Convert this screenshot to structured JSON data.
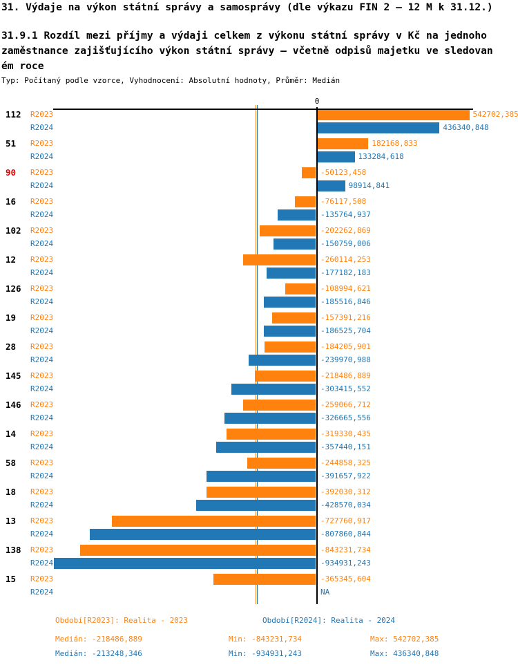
{
  "header": {
    "title": "31. Výdaje na výkon státní správy a samosprávy (dle výkazu FIN 2 – 12 M k 31.12.)",
    "subtitle_lines": [
      "31.9.1 Rozdíl mezi příjmy a výdaji celkem z výkonu státní správy v Kč na jednoho",
      "zaměstnance zajišťujícího výkon státní správy – včetně odpisů majetku ve sledovan",
      "ém roce"
    ],
    "meta": "Typ: Počítaný podle vzorce, Vyhodnocení: Absolutní hodnoty, Průměr: Medián"
  },
  "chart_data": {
    "type": "bar",
    "orientation": "horizontal",
    "zero_label": "0",
    "xlim": [
      -934931.243,
      542702.385
    ],
    "series_labels": {
      "r2023": "R2023",
      "r2024": "R2024"
    },
    "colors": {
      "r2023": "#FF820E",
      "r2024": "#2277B5",
      "highlight_id": "#EE0000",
      "id": "#000000",
      "axis": "#000000"
    },
    "medians": {
      "r2023": -218486.889,
      "r2024": -213248.346
    },
    "groups": [
      {
        "id": "112",
        "highlight": false,
        "r2023": {
          "value": 542702.385,
          "label": "542702,385"
        },
        "r2024": {
          "value": 436340.848,
          "label": "436340,848"
        }
      },
      {
        "id": "51",
        "highlight": false,
        "r2023": {
          "value": 182168.833,
          "label": "182168,833"
        },
        "r2024": {
          "value": 133284.618,
          "label": "133284,618"
        }
      },
      {
        "id": "90",
        "highlight": true,
        "r2023": {
          "value": -50123.458,
          "label": "-50123,458"
        },
        "r2024": {
          "value": 98914.841,
          "label": "98914,841"
        }
      },
      {
        "id": "16",
        "highlight": false,
        "r2023": {
          "value": -76117.508,
          "label": "-76117,508"
        },
        "r2024": {
          "value": -135764.937,
          "label": "-135764,937"
        }
      },
      {
        "id": "102",
        "highlight": false,
        "r2023": {
          "value": -202262.869,
          "label": "-202262,869"
        },
        "r2024": {
          "value": -150759.006,
          "label": "-150759,006"
        }
      },
      {
        "id": "12",
        "highlight": false,
        "r2023": {
          "value": -260114.253,
          "label": "-260114,253"
        },
        "r2024": {
          "value": -177182.183,
          "label": "-177182,183"
        }
      },
      {
        "id": "126",
        "highlight": false,
        "r2023": {
          "value": -108994.621,
          "label": "-108994,621"
        },
        "r2024": {
          "value": -185516.846,
          "label": "-185516,846"
        }
      },
      {
        "id": "19",
        "highlight": false,
        "r2023": {
          "value": -157391.216,
          "label": "-157391,216"
        },
        "r2024": {
          "value": -186525.704,
          "label": "-186525,704"
        }
      },
      {
        "id": "28",
        "highlight": false,
        "r2023": {
          "value": -184205.901,
          "label": "-184205,901"
        },
        "r2024": {
          "value": -239970.988,
          "label": "-239970,988"
        }
      },
      {
        "id": "145",
        "highlight": false,
        "r2023": {
          "value": -218486.889,
          "label": "-218486,889"
        },
        "r2024": {
          "value": -303415.552,
          "label": "-303415,552"
        }
      },
      {
        "id": "146",
        "highlight": false,
        "r2023": {
          "value": -259066.712,
          "label": "-259066,712"
        },
        "r2024": {
          "value": -326665.556,
          "label": "-326665,556"
        }
      },
      {
        "id": "14",
        "highlight": false,
        "r2023": {
          "value": -319330.435,
          "label": "-319330,435"
        },
        "r2024": {
          "value": -357440.151,
          "label": "-357440,151"
        }
      },
      {
        "id": "58",
        "highlight": false,
        "r2023": {
          "value": -244858.325,
          "label": "-244858,325"
        },
        "r2024": {
          "value": -391657.922,
          "label": "-391657,922"
        }
      },
      {
        "id": "18",
        "highlight": false,
        "r2023": {
          "value": -392030.312,
          "label": "-392030,312"
        },
        "r2024": {
          "value": -428570.034,
          "label": "-428570,034"
        }
      },
      {
        "id": "13",
        "highlight": false,
        "r2023": {
          "value": -727760.917,
          "label": "-727760,917"
        },
        "r2024": {
          "value": -807860.844,
          "label": "-807860,844"
        }
      },
      {
        "id": "138",
        "highlight": false,
        "r2023": {
          "value": -843231.734,
          "label": "-843231,734"
        },
        "r2024": {
          "value": -934931.243,
          "label": "-934931,243"
        }
      },
      {
        "id": "15",
        "highlight": false,
        "r2023": {
          "value": -365345.604,
          "label": "-365345,604"
        },
        "r2024": {
          "value": null,
          "label": "NA"
        }
      }
    ]
  },
  "footer": {
    "period_2023": "Období[R2023]: Realita - 2023",
    "period_2024": "Období[R2024]: Realita - 2024",
    "stats_2023": {
      "median": "Medián: -218486,889",
      "min": "Min: -843231,734",
      "max": "Max: 542702,385"
    },
    "stats_2024": {
      "median": "Medián: -213248,346",
      "min": "Min: -934931,243",
      "max": "Max: 436340,848"
    }
  }
}
